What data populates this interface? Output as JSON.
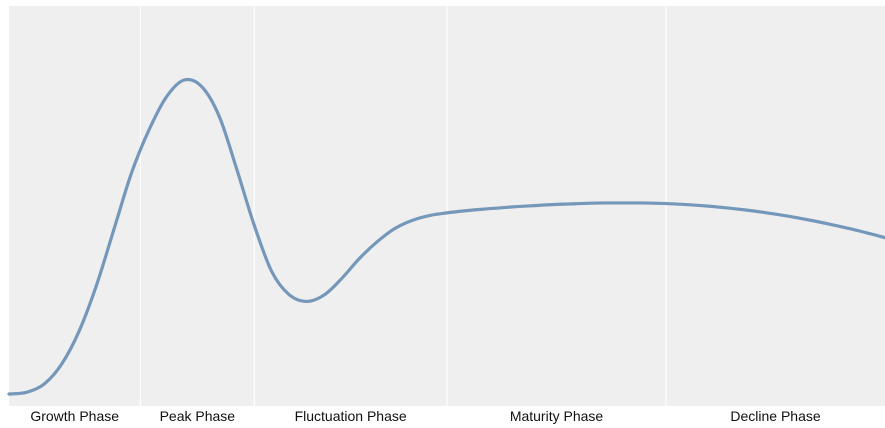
{
  "chart_data": {
    "type": "line",
    "title": "",
    "xlabel": "",
    "ylabel": "",
    "grid": false,
    "phases": [
      {
        "label": "Growth Phase",
        "start": 0.0,
        "end": 1.5
      },
      {
        "label": "Peak Phase",
        "start": 1.5,
        "end": 2.8
      },
      {
        "label": "Fluctuation Phase",
        "start": 2.8,
        "end": 5.0
      },
      {
        "label": "Maturity Phase",
        "start": 5.0,
        "end": 7.5
      },
      {
        "label": "Decline Phase",
        "start": 7.5,
        "end": 10.0
      }
    ],
    "xlim": [
      0,
      10
    ],
    "ylim": [
      0,
      1.1
    ],
    "series": [
      {
        "color": "#7497BA",
        "x": [
          0.0,
          0.2,
          0.4,
          0.6,
          0.8,
          1.0,
          1.2,
          1.4,
          1.6,
          1.8,
          2.0,
          2.2,
          2.4,
          2.6,
          2.8,
          3.0,
          3.2,
          3.4,
          3.6,
          3.8,
          4.0,
          4.2,
          4.4,
          4.6,
          4.8,
          5.0,
          5.2,
          5.4,
          5.6,
          5.8,
          6.0,
          6.2,
          6.4,
          6.6,
          6.8,
          7.0,
          7.2,
          7.4,
          7.6,
          7.8,
          8.0,
          8.2,
          8.4,
          8.6,
          8.8,
          9.0,
          9.2,
          9.4,
          9.6,
          9.8,
          10.0
        ],
        "y": [
          0.0,
          0.005,
          0.03,
          0.09,
          0.19,
          0.33,
          0.5,
          0.67,
          0.8,
          0.9,
          0.95,
          0.93,
          0.84,
          0.68,
          0.51,
          0.37,
          0.3,
          0.28,
          0.3,
          0.35,
          0.41,
          0.46,
          0.5,
          0.525,
          0.54,
          0.548,
          0.554,
          0.559,
          0.563,
          0.567,
          0.57,
          0.573,
          0.575,
          0.577,
          0.578,
          0.578,
          0.578,
          0.577,
          0.575,
          0.572,
          0.568,
          0.563,
          0.557,
          0.55,
          0.542,
          0.533,
          0.523,
          0.512,
          0.5,
          0.487,
          0.473
        ]
      }
    ]
  }
}
